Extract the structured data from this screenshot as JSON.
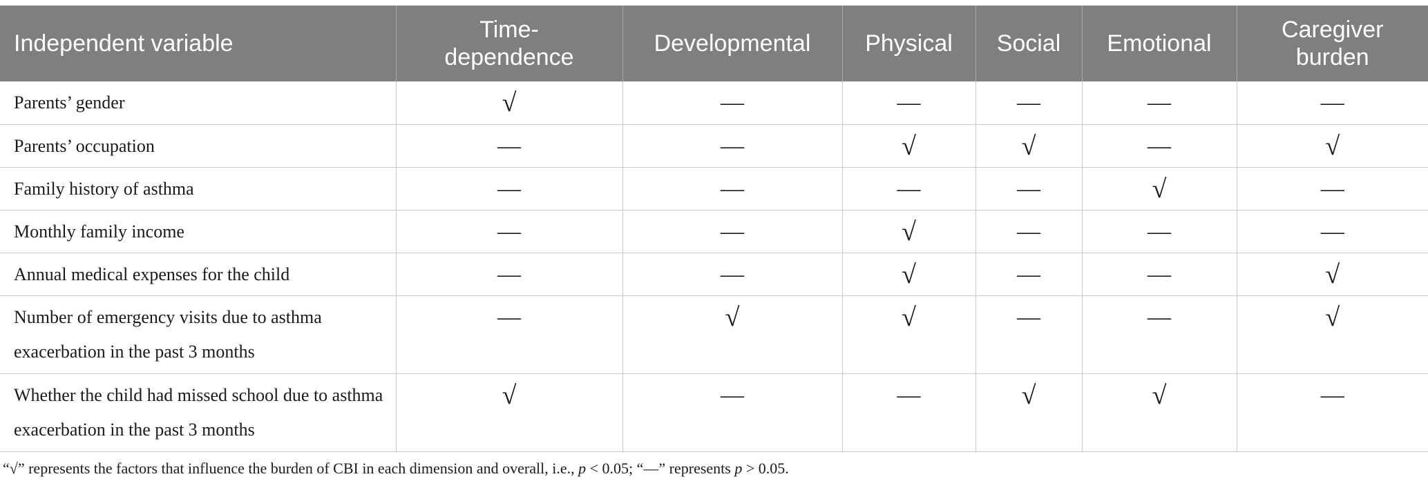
{
  "table": {
    "headers": [
      "Independent variable",
      "Time-\ndependence",
      "Developmental",
      "Physical",
      "Social",
      "Emotional",
      "Caregiver\nburden"
    ],
    "rows": [
      {
        "label": "Parents’ gender",
        "values": [
          "√",
          "—",
          "—",
          "—",
          "—",
          "—"
        ]
      },
      {
        "label": "Parents’ occupation",
        "values": [
          "—",
          "—",
          "√",
          "√",
          "—",
          "√"
        ]
      },
      {
        "label": "Family history of asthma",
        "values": [
          "—",
          "—",
          "—",
          "—",
          "√",
          "—"
        ]
      },
      {
        "label": "Monthly family income",
        "values": [
          "—",
          "—",
          "√",
          "—",
          "—",
          "—"
        ]
      },
      {
        "label": "Annual medical expenses for the child",
        "values": [
          "—",
          "—",
          "√",
          "—",
          "—",
          "√"
        ]
      },
      {
        "label": "Number of emergency visits due to asthma exacerbation in the past 3 months",
        "values": [
          "—",
          "√",
          "√",
          "—",
          "—",
          "√"
        ]
      },
      {
        "label": "Whether the child had missed school due to asthma exacerbation in the past 3 months",
        "values": [
          "√",
          "—",
          "—",
          "√",
          "√",
          "—"
        ]
      }
    ]
  },
  "footnote": {
    "part1": "“√” represents the factors that influence the burden of CBI in each dimension and overall, i.e., ",
    "p1": "p",
    "part2": " < 0.05; “—” represents ",
    "p2": "p",
    "part3": " > 0.05."
  }
}
